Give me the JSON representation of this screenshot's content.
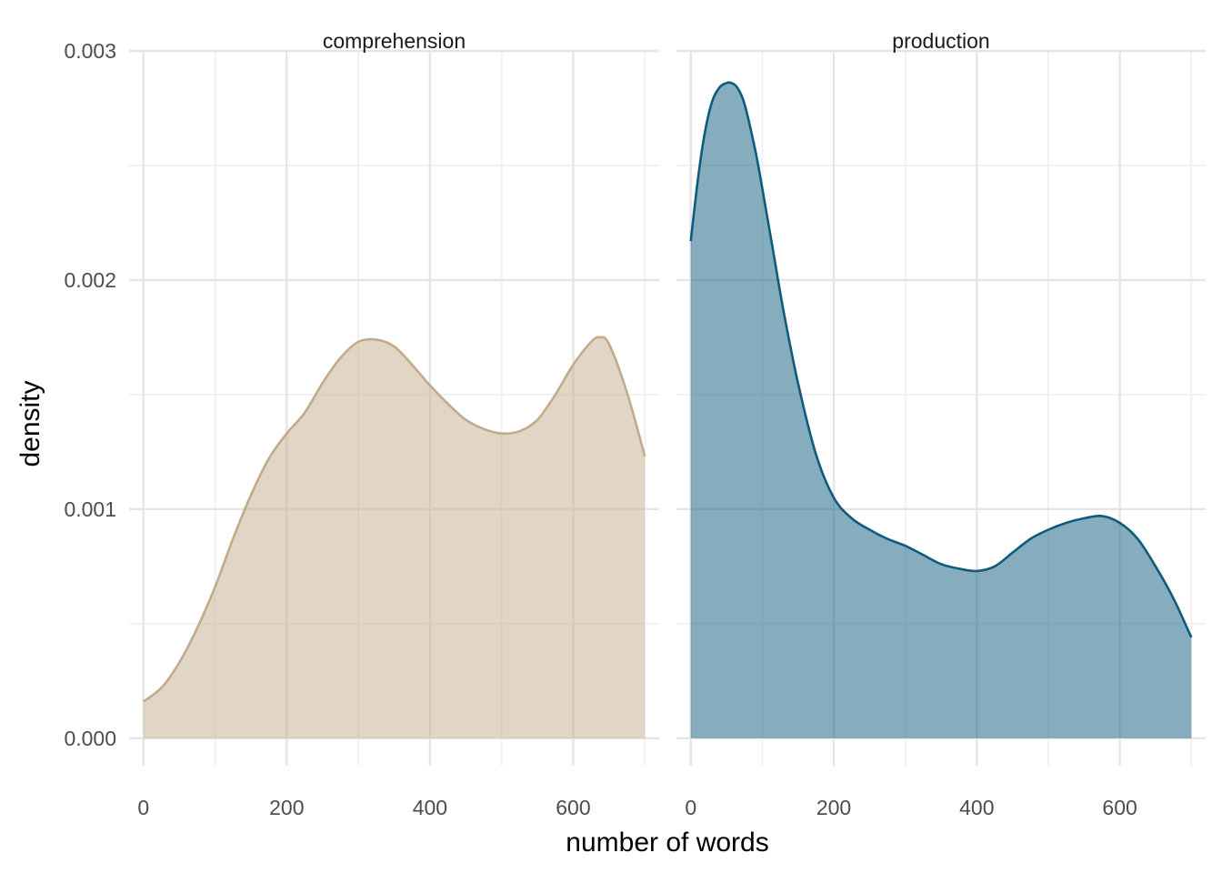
{
  "chart_data": {
    "type": "area",
    "xlabel": "number of words",
    "ylabel": "density",
    "xlim": [
      -20,
      720
    ],
    "ylim": [
      -0.00012,
      0.003
    ],
    "x_ticks": [
      0,
      200,
      400,
      600
    ],
    "x_tick_labels": [
      "0",
      "200",
      "400",
      "600"
    ],
    "y_ticks": [
      0,
      0.001,
      0.002,
      0.003
    ],
    "y_tick_labels": [
      "0.000",
      "0.001",
      "0.002",
      "0.003"
    ],
    "grid": true,
    "legend": "none",
    "panels": [
      {
        "label": "comprehension",
        "fill_color": "#c9b295",
        "fill_opacity": 0.55,
        "line_color": "#c2aa8c",
        "x": [
          0,
          25,
          50,
          75,
          100,
          125,
          150,
          175,
          200,
          225,
          250,
          275,
          300,
          325,
          350,
          375,
          400,
          425,
          450,
          475,
          500,
          525,
          550,
          575,
          600,
          625,
          637,
          650,
          675,
          700
        ],
        "y": [
          0.00016,
          0.00022,
          0.00033,
          0.00048,
          0.00066,
          0.00087,
          0.00106,
          0.00122,
          0.00133,
          0.00142,
          0.00155,
          0.00166,
          0.00173,
          0.00174,
          0.00171,
          0.00163,
          0.00154,
          0.00146,
          0.00139,
          0.00135,
          0.00133,
          0.00134,
          0.00139,
          0.0015,
          0.00163,
          0.00173,
          0.00175,
          0.00172,
          0.00151,
          0.00123
        ]
      },
      {
        "label": "production",
        "fill_color": "#0e5b7e",
        "fill_opacity": 0.5,
        "line_color": "#0e5b7e",
        "x": [
          0,
          10,
          20,
          30,
          40,
          50,
          57,
          65,
          75,
          90,
          100,
          115,
          130,
          150,
          175,
          200,
          225,
          250,
          275,
          300,
          325,
          350,
          375,
          400,
          425,
          450,
          475,
          500,
          525,
          550,
          575,
          600,
          625,
          650,
          675,
          700
        ],
        "y": [
          0.00217,
          0.00244,
          0.00265,
          0.00278,
          0.00284,
          0.00286,
          0.00286,
          0.00284,
          0.00277,
          0.00257,
          0.0024,
          0.00213,
          0.00186,
          0.00155,
          0.00124,
          0.00105,
          0.00096,
          0.00091,
          0.00087,
          0.00084,
          0.0008,
          0.00076,
          0.00074,
          0.00073,
          0.00075,
          0.00081,
          0.00087,
          0.00091,
          0.00094,
          0.00096,
          0.00097,
          0.00094,
          0.00087,
          0.00075,
          0.00061,
          0.00044
        ]
      }
    ]
  }
}
